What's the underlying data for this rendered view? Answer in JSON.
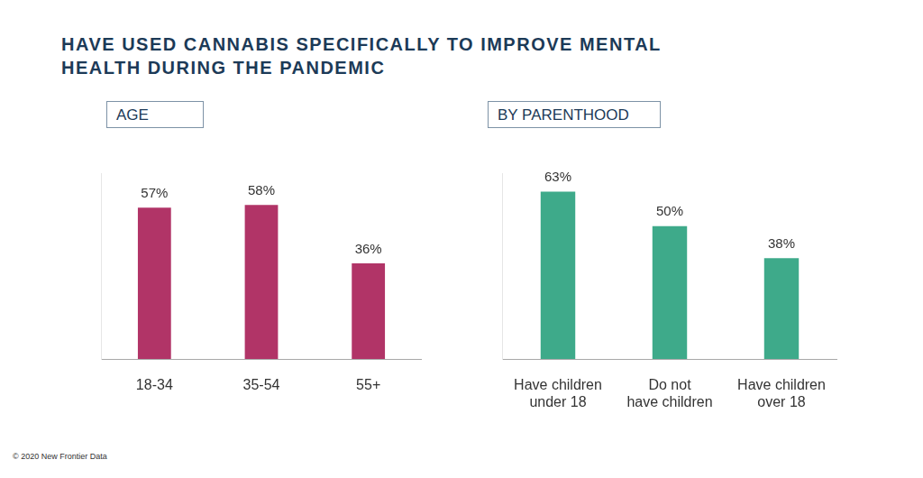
{
  "title": "HAVE USED CANNABIS SPECIFICALLY TO IMPROVE MENTAL HEALTH DURING THE PANDEMIC",
  "source": "© 2020  New Frontier Data",
  "chart_data": [
    {
      "type": "bar",
      "subtitle": "AGE",
      "categories": [
        "18-34",
        "35-54",
        "55+"
      ],
      "values": [
        57,
        58,
        36
      ],
      "value_labels": [
        "57%",
        "58%",
        "36%"
      ],
      "color": "#b13467",
      "ylim": [
        0,
        70
      ],
      "grid": false,
      "data_labels": true,
      "tick_labels": "x"
    },
    {
      "type": "bar",
      "subtitle": "BY PARENTHOOD",
      "categories": [
        [
          "Have children",
          "under 18"
        ],
        [
          "Do not",
          "have children"
        ],
        [
          "Have children",
          "over 18"
        ]
      ],
      "values": [
        63,
        50,
        38
      ],
      "value_labels": [
        "63%",
        "50%",
        "38%"
      ],
      "color": "#3eaa8a",
      "ylim": [
        0,
        70
      ],
      "grid": false,
      "data_labels": true,
      "tick_labels": "x"
    }
  ]
}
